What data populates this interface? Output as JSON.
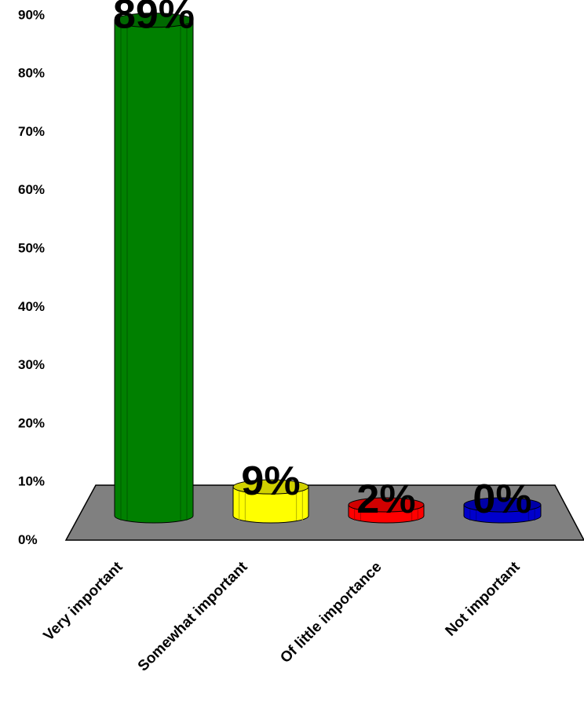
{
  "chart_data": {
    "type": "bar",
    "categories": [
      "Very important",
      "Somewhat important",
      "Of little importance",
      "Not important"
    ],
    "values": [
      89,
      9,
      2,
      0
    ],
    "value_labels": [
      "89%",
      "9%",
      "2%",
      "0%"
    ],
    "bar_colors": [
      "#008000",
      "#FFFF00",
      "#FF0000",
      "#0000CC"
    ],
    "floor_color": "#808080",
    "y_ticks": [
      0,
      10,
      20,
      30,
      40,
      50,
      60,
      70,
      80,
      90
    ],
    "y_tick_labels": [
      "0%",
      "10%",
      "20%",
      "30%",
      "40%",
      "50%",
      "60%",
      "70%",
      "80%",
      "90%"
    ],
    "ylim": [
      0,
      90
    ],
    "title": "",
    "xlabel": "",
    "ylabel": "",
    "grid": false,
    "legend": "none",
    "style": "3d-cylinder"
  }
}
